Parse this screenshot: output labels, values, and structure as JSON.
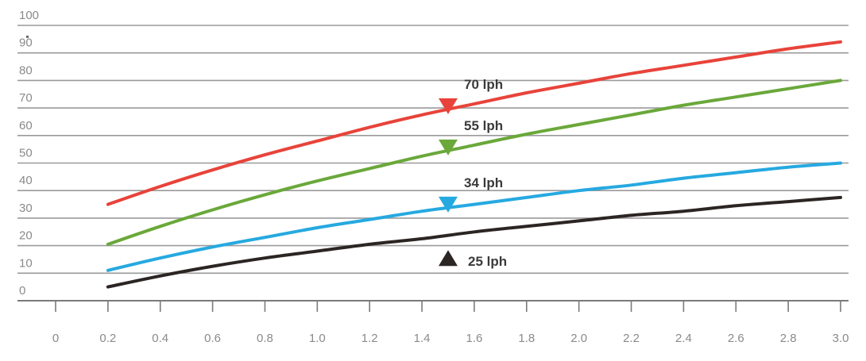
{
  "chart_data": {
    "type": "line",
    "title": "",
    "xlabel": "",
    "ylabel": "",
    "xlim": [
      0,
      3.0
    ],
    "ylim": [
      0,
      100
    ],
    "grid": true,
    "y_ticks": [
      "0",
      "10",
      "20",
      "30",
      "40",
      "50",
      "60",
      "70",
      "80",
      "90",
      "100"
    ],
    "x_ticks": [
      "0",
      "0.2",
      "0.4",
      "0.6",
      "0.8",
      "1.0",
      "1.2",
      "1.4",
      "1.6",
      "1.8",
      "2.0",
      "2.2",
      "2.4",
      "2.6",
      "2.8",
      "3.0"
    ],
    "series": [
      {
        "name": "70 lph",
        "color": "#e8433a",
        "marker": "triangle-down",
        "marker_x": 1.5,
        "x": [
          0.2,
          0.4,
          0.6,
          0.8,
          1.0,
          1.2,
          1.4,
          1.6,
          1.8,
          2.0,
          2.2,
          2.4,
          2.6,
          2.8,
          3.0
        ],
        "values": [
          35,
          41.5,
          47.5,
          53,
          58,
          63,
          67.5,
          71.5,
          75.5,
          79,
          82.5,
          85.5,
          88.5,
          91.5,
          94
        ]
      },
      {
        "name": "55 lph",
        "color": "#6aa83a",
        "marker": "triangle-down",
        "marker_x": 1.5,
        "x": [
          0.2,
          0.4,
          0.6,
          0.8,
          1.0,
          1.2,
          1.4,
          1.6,
          1.8,
          2.0,
          2.2,
          2.4,
          2.6,
          2.8,
          3.0
        ],
        "values": [
          20.5,
          27,
          33,
          38.5,
          43.5,
          48,
          52.5,
          56.5,
          60.5,
          64,
          67.5,
          71,
          74,
          77,
          80
        ]
      },
      {
        "name": "34 lph",
        "color": "#26a9e0",
        "marker": "triangle-down",
        "marker_x": 1.5,
        "x": [
          0.2,
          0.4,
          0.6,
          0.8,
          1.0,
          1.2,
          1.4,
          1.6,
          1.8,
          2.0,
          2.2,
          2.4,
          2.6,
          2.8,
          3.0
        ],
        "values": [
          11,
          15.5,
          19.5,
          23,
          26.5,
          29.5,
          32.5,
          35,
          37.5,
          40,
          42,
          44.5,
          46.5,
          48.5,
          50
        ]
      },
      {
        "name": "25 lph",
        "color": "#2b2523",
        "marker": "triangle-up",
        "marker_x": 1.5,
        "x": [
          0.2,
          0.4,
          0.6,
          0.8,
          1.0,
          1.2,
          1.4,
          1.6,
          1.8,
          2.0,
          2.2,
          2.4,
          2.6,
          2.8,
          3.0
        ],
        "values": [
          5,
          9,
          12.5,
          15.5,
          18,
          20.5,
          22.5,
          25,
          27,
          29,
          31,
          32.5,
          34.5,
          36,
          37.5
        ]
      }
    ]
  }
}
